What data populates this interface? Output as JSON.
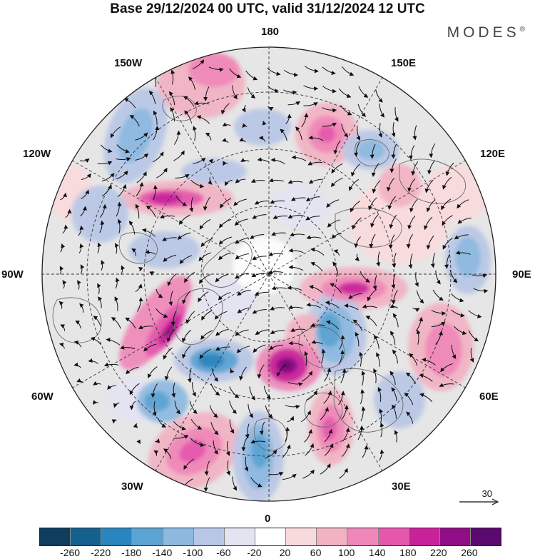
{
  "title": "Base 29/12/2024 00 UTC, valid 31/12/2024 12 UTC",
  "brand": "MODES",
  "brand_mark": "®",
  "longitude_labels": {
    "top": "180",
    "top_left": "150W",
    "top_right": "150E",
    "upper_left": "120W",
    "upper_right": "120E",
    "left": "90W",
    "right": "90E",
    "lower_left": "60W",
    "lower_right": "60E",
    "bottom_left": "30W",
    "bottom_right": "30E",
    "bottom": "0"
  },
  "vector_reference": "30",
  "colorbar": {
    "colors": [
      "#0e3d5e",
      "#14608f",
      "#2a84bd",
      "#5ba3d2",
      "#8db9df",
      "#b8c7e6",
      "#e3e3f2",
      "#ffffff",
      "#f8dadc",
      "#f2b2c2",
      "#ef88b8",
      "#e457ad",
      "#c8229b",
      "#8f0e86",
      "#5a0a6e"
    ],
    "ticks": [
      "-260",
      "-220",
      "-180",
      "-140",
      "-100",
      "-60",
      "-20",
      "20",
      "60",
      "100",
      "140",
      "180",
      "220",
      "260"
    ]
  },
  "map_style": {
    "projection": "north polar stereographic",
    "background": "#e6e6e6",
    "coastline": "#6a6a6a",
    "grid": "#333333"
  }
}
